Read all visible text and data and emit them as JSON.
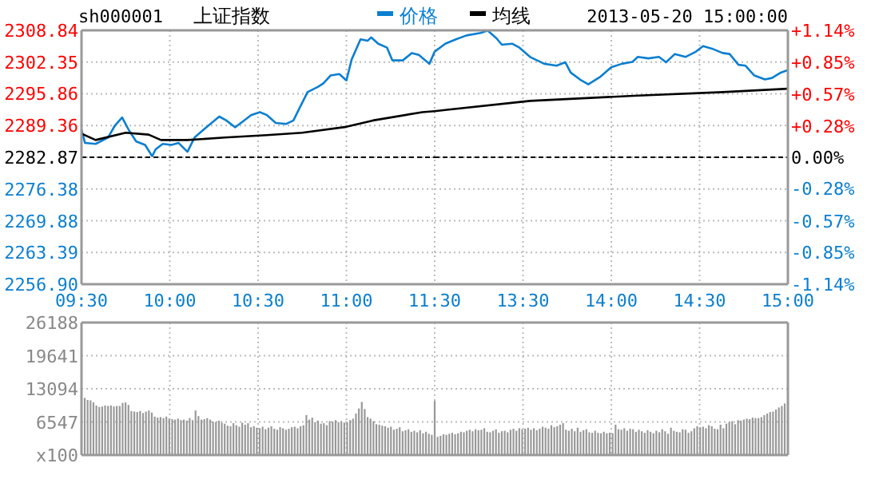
{
  "chart_data": [
    {
      "type": "line",
      "title": "上证指数",
      "subtitle": "sh000001",
      "legend": "top",
      "grid": true,
      "marker": "none",
      "xlim": [
        9.5,
        11.5
      ],
      "xticks": [
        {
          "value": 9.5,
          "label": "09:30"
        },
        {
          "value": 10,
          "label": "10:00"
        },
        {
          "value": 10.5,
          "label": "10:30"
        },
        {
          "value": 11,
          "label": "11:00"
        },
        {
          "value": 11.5,
          "label": "11:30"
        }
      ],
      "ylim": [
        2256.9,
        2308.84
      ],
      "yticks": [
        {
          "value": 2256.9,
          "label": "2256.90"
        },
        2263.39,
        2269.88,
        2276.38,
        2282.87,
        2289.36,
        2295.86,
        2302.35,
        2308.84
      ],
      "ref_lines": [
        {
          "axis": "y",
          "value": 2282.87,
          "color": "#000000",
          "line_style": "dashed"
        }
      ],
      "series": [
        {
          "name": "价格",
          "color": "#0b7fd0",
          "x": [
            9.5,
            9.52,
            9.58,
            9.65,
            9.69,
            9.73,
            9.77,
            9.81,
            9.86,
            9.9,
            9.92,
            9.96,
            10.01,
            10.05,
            10.1,
            10.14,
            10.2,
            10.28,
            10.32,
            10.37,
            10.41,
            10.46,
            10.51,
            10.55,
            10.6,
            10.66,
            10.7,
            10.73,
            10.78,
            10.84,
            10.87,
            10.91,
            10.96,
            11,
            11.03,
            11.08,
            11.12,
            11.14,
            11.18,
            11.23,
            11.26,
            11.32,
            11.37,
            11.41,
            11.47,
            11.5
          ],
          "values": [
            2288.5,
            2285.8,
            2285.6,
            2286.9,
            2289.4,
            2291,
            2288.3,
            2286.1,
            2285.4,
            2283.1,
            2284.5,
            2285.6,
            2285.4,
            2285.8,
            2284,
            2286.9,
            2288.8,
            2291.2,
            2290.4,
            2289,
            2290.1,
            2291.5,
            2292.1,
            2291.5,
            2289.9,
            2289.7,
            2290.4,
            2292.6,
            2296.2,
            2297.3,
            2298,
            2299.6,
            2299.9,
            2298.6,
            2302.9,
            2307,
            2306.7,
            2307.4,
            2306.1,
            2305.3,
            2302.7,
            2302.7,
            2304.2,
            2303.8,
            2302,
            2304.5
          ]
        },
        {
          "name": "均线",
          "color": "#000000",
          "x": [
            9.5,
            9.58,
            9.75,
            9.88,
            9.95,
            10.1,
            10.31,
            10.55,
            10.75,
            11,
            11.15,
            11.43,
            11.5
          ],
          "values": [
            2287.7,
            2286.4,
            2287.9,
            2287.5,
            2286.4,
            2286.4,
            2286.9,
            2287.4,
            2287.9,
            2289.1,
            2290.4,
            2292.1,
            2292.3
          ]
        }
      ]
    },
    {
      "type": "line",
      "annotations": [
        "2013-05-20 15:00:00"
      ],
      "grid": true,
      "marker": "none",
      "tick_labels": "x",
      "xlim": [
        13,
        15
      ],
      "xticks": [
        {
          "value": 13.5,
          "label": "13:30"
        },
        {
          "value": 14,
          "label": "14:00"
        },
        {
          "value": 14.5,
          "label": "14:30"
        },
        {
          "value": 15,
          "label": "15:00"
        }
      ],
      "ylim": [
        2256.9,
        2308.84
      ],
      "yticks": [
        {
          "value": 2256.9,
          "label": null
        },
        {
          "value": 2263.39,
          "label": null
        },
        {
          "value": 2269.88,
          "label": null
        },
        {
          "value": 2276.38,
          "label": null
        },
        {
          "value": 2282.87,
          "label": null
        },
        {
          "value": 2289.36,
          "label": null
        },
        {
          "value": 2295.86,
          "label": null
        },
        {
          "value": 2302.35,
          "label": null
        },
        {
          "value": 2308.84,
          "label": null
        }
      ],
      "y2lim": [
        -1.14,
        1.14
      ],
      "y2ticks": [
        {
          "value": -1.14,
          "label": "-1.14%"
        },
        {
          "value": -0.85,
          "label": "-0.85%"
        },
        {
          "value": -0.57,
          "label": "-0.57%"
        },
        {
          "value": -0.28,
          "label": "-0.28%"
        },
        {
          "value": 0,
          "label": "0.00%"
        },
        {
          "value": 0.28,
          "label": "+0.28%"
        },
        {
          "value": 0.57,
          "label": "+0.57%"
        },
        {
          "value": 0.85,
          "label": "+0.85%"
        },
        {
          "value": 1.14,
          "label": "+1.14%"
        }
      ],
      "ref_lines": [
        {
          "axis": "y",
          "value": 2282.87,
          "color": "#000000",
          "line_style": "dashed"
        }
      ],
      "series": [
        {
          "color": "#0b7fd0",
          "x": [
            13,
            13.06,
            13.12,
            13.18,
            13.26,
            13.3,
            13.35,
            13.38,
            13.44,
            13.48,
            13.54,
            13.62,
            13.69,
            13.74,
            13.77,
            13.83,
            13.87,
            13.94,
            14,
            14.06,
            14.12,
            14.15,
            14.21,
            14.27,
            14.31,
            14.36,
            14.42,
            14.48,
            14.52,
            14.57,
            14.63,
            14.67,
            14.72,
            14.76,
            14.81,
            14.87,
            14.91,
            14.96,
            15
          ],
          "values": [
            2304.5,
            2306.1,
            2307,
            2307.8,
            2308.3,
            2308.8,
            2307.2,
            2305.9,
            2306.1,
            2305.3,
            2303.4,
            2302,
            2301.6,
            2302.3,
            2300.2,
            2298.6,
            2297.8,
            2299.4,
            2301.3,
            2302,
            2302.4,
            2303.4,
            2303.1,
            2303.4,
            2302.3,
            2304,
            2303.4,
            2304.5,
            2305.6,
            2305.1,
            2304.2,
            2304,
            2301.8,
            2301.6,
            2299.6,
            2298.8,
            2299.1,
            2300.2,
            2300.7
          ]
        },
        {
          "color": "#000000",
          "x": [
            13,
            13.07,
            13.54,
            14.15,
            14.63,
            15
          ],
          "values": [
            2292.3,
            2292.6,
            2294.4,
            2295.5,
            2296.2,
            2296.9
          ]
        }
      ]
    },
    {
      "type": "bar",
      "grid": true,
      "tick_labels": "y",
      "categories": [
        null,
        null,
        null,
        null,
        null,
        null,
        null,
        null,
        null,
        null,
        null,
        null,
        null,
        null,
        null,
        null,
        null,
        null,
        null,
        null,
        null,
        null,
        null,
        null,
        null,
        null,
        null,
        null,
        null,
        null,
        null,
        null,
        null,
        null,
        null,
        null,
        null,
        null,
        null,
        null,
        null,
        null,
        null,
        null,
        null,
        null,
        null,
        null,
        null,
        null,
        null,
        null,
        null,
        null,
        null,
        null,
        null,
        null,
        null,
        null,
        null,
        null,
        null,
        null,
        null,
        null,
        null,
        null,
        null,
        null,
        null,
        null,
        null,
        null,
        null,
        null,
        null,
        null,
        null,
        null,
        null,
        null,
        null,
        null,
        null,
        null,
        null,
        null,
        null,
        null,
        null,
        null,
        null,
        null,
        null,
        null,
        null,
        null,
        null,
        null,
        null,
        null,
        null,
        null,
        null,
        null,
        null,
        null,
        null,
        null,
        null,
        null,
        null,
        null,
        null,
        null,
        null,
        null,
        null,
        null,
        null,
        null,
        null,
        null,
        null,
        null,
        null,
        null,
        null,
        null,
        null,
        null,
        null,
        null,
        null,
        null,
        null,
        null,
        null,
        null,
        null,
        null,
        null,
        null,
        null,
        null,
        null,
        null,
        null,
        null,
        null,
        null,
        null,
        null,
        null,
        null,
        null,
        null,
        null,
        null,
        null,
        null,
        null,
        null,
        null,
        null,
        null,
        null,
        null,
        null,
        null,
        null,
        null,
        null,
        null,
        null,
        null,
        null,
        null,
        null,
        null,
        null,
        null,
        null,
        null,
        null,
        null,
        null,
        null,
        null,
        null,
        null,
        null,
        null,
        null,
        null,
        null,
        null,
        null,
        null,
        null,
        null,
        null,
        null,
        null,
        null,
        null,
        null,
        null,
        null,
        null,
        null,
        null,
        null,
        null,
        null,
        null,
        null,
        null,
        null,
        null,
        null,
        null,
        null,
        null,
        null,
        null,
        null,
        null,
        null,
        null,
        null,
        null,
        null,
        null,
        null,
        null,
        null,
        null,
        null,
        null
      ],
      "ylim": [
        0,
        26188
      ],
      "yticks": [
        {
          "value": 0,
          "label": "x100"
        },
        6547,
        13094,
        19641,
        26188
      ],
      "series": [
        {
          "color": "#999999",
          "values": [
            11300,
            10900,
            10800,
            10400,
            9800,
            9500,
            9600,
            9800,
            9700,
            9800,
            9600,
            9700,
            9700,
            10300,
            10400,
            9900,
            8700,
            8600,
            8500,
            8700,
            8300,
            8600,
            8800,
            8400,
            7600,
            7400,
            7500,
            7300,
            7600,
            7200,
            7100,
            7000,
            7200,
            6900,
            7000,
            6800,
            7300,
            6900,
            8800,
            7700,
            7000,
            7100,
            7300,
            7000,
            6600,
            6500,
            6800,
            6400,
            6200,
            5800,
            5700,
            6300,
            5900,
            5600,
            6400,
            6000,
            6300,
            5500,
            5700,
            5400,
            5300,
            5600,
            5100,
            5400,
            5700,
            5200,
            5000,
            5500,
            5300,
            5000,
            5200,
            5500,
            5600,
            5300,
            5700,
            5900,
            7900,
            7000,
            7400,
            6500,
            6800,
            6200,
            6300,
            5900,
            6700,
            6600,
            6900,
            6500,
            6700,
            6400,
            6500,
            6900,
            7200,
            8200,
            9200,
            10500,
            9100,
            7500,
            7200,
            6700,
            6100,
            6000,
            5800,
            5700,
            5400,
            5600,
            5000,
            5200,
            5500,
            4700,
            4900,
            5100,
            4600,
            4800,
            4500,
            4900,
            4300,
            4600,
            4200,
            4000,
            10700,
            3600,
            3800,
            4100,
            4000,
            4200,
            4400,
            4100,
            4300,
            4600,
            4500,
            4800,
            5000,
            4700,
            5100,
            4900,
            5000,
            5300,
            4600,
            4500,
            4800,
            5100,
            4400,
            4700,
            4800,
            4500,
            5000,
            5200,
            4800,
            5300,
            5100,
            5200,
            5400,
            5000,
            5300,
            4900,
            5200,
            5600,
            5400,
            5200,
            5900,
            5500,
            5700,
            6000,
            6300,
            5000,
            4800,
            5200,
            4700,
            5400,
            4600,
            4900,
            5100,
            4500,
            4400,
            4800,
            4400,
            4300,
            4600,
            4300,
            4400,
            4300,
            6000,
            5100,
            5000,
            5300,
            4800,
            5200,
            5100,
            4600,
            5000,
            4700,
            4400,
            4900,
            4600,
            4300,
            4800,
            4500,
            5100,
            4700,
            4200,
            5400,
            4800,
            4600,
            4500,
            5100,
            5000,
            4400,
            4700,
            5300,
            5700,
            5500,
            5600,
            5300,
            5900,
            5700,
            5200,
            5100,
            6000,
            5300,
            6200,
            6500,
            6700,
            6100,
            6900,
            6800,
            7000,
            7200,
            7100,
            7400,
            7300,
            7300,
            7500,
            7900,
            8200,
            8500,
            8600,
            9000,
            9400,
            9700,
            10200
          ]
        }
      ]
    }
  ]
}
